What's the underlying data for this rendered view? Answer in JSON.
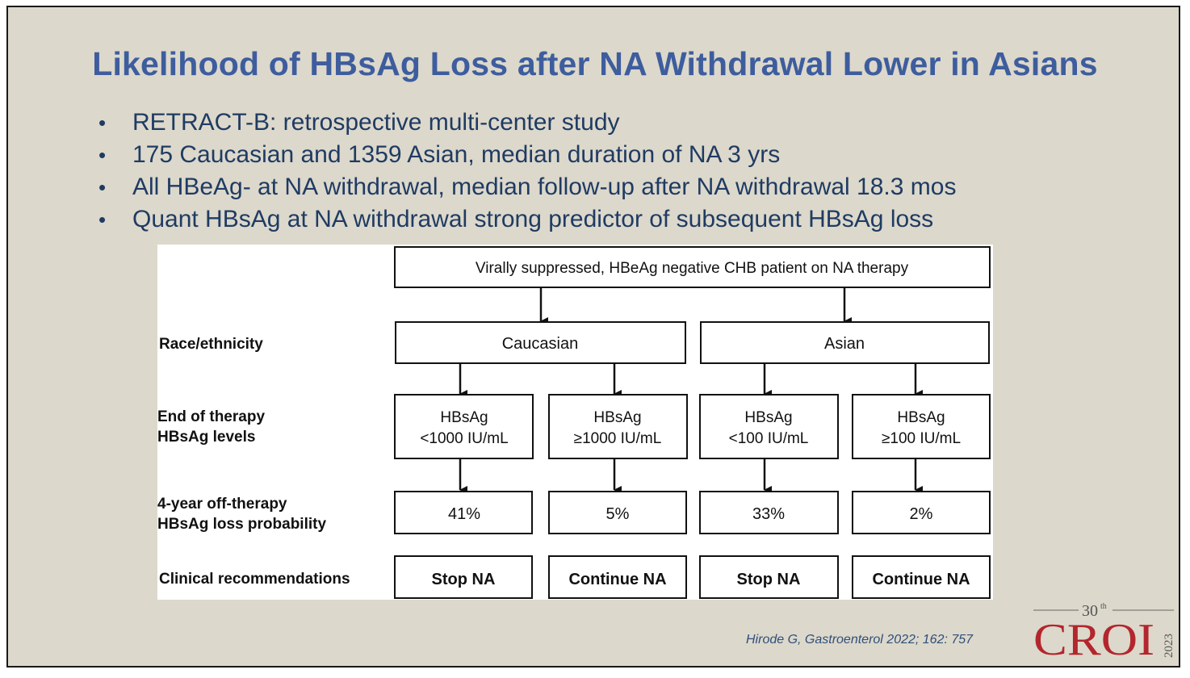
{
  "slide": {
    "title": "Likelihood of HBsAg Loss after NA Withdrawal Lower in Asians",
    "bullets": [
      "RETRACT-B: retrospective multi-center study",
      "175 Caucasian and 1359 Asian, median duration of NA 3 yrs",
      "All HBeAg- at NA withdrawal, median follow-up after NA withdrawal 18.3 mos",
      "Quant HBsAg at NA withdrawal strong predictor of subsequent HBsAg loss"
    ],
    "bullet_glyph": "•",
    "citation": "Hirode G, Gastroenterol 2022; 162: 757"
  },
  "diagram": {
    "top_box": "Virally suppressed, HBeAg negative CHB patient on NA therapy",
    "row_labels": {
      "race": "Race/ethnicity",
      "end_therapy_line1": "End of therapy",
      "end_therapy_line2": "HBsAg levels",
      "probability_line1": "4-year off-therapy",
      "probability_line2": "HBsAg loss probability",
      "recommendation": "Clinical recommendations"
    },
    "groups": [
      {
        "name": "Caucasian",
        "branches": [
          {
            "level_line1": "HBsAg",
            "level_line2": "<1000 IU/mL",
            "probability": "41%",
            "recommendation": "Stop NA"
          },
          {
            "level_line1": "HBsAg",
            "level_line2": "≥1000 IU/mL",
            "probability": "5%",
            "recommendation": "Continue NA"
          }
        ]
      },
      {
        "name": "Asian",
        "branches": [
          {
            "level_line1": "HBsAg",
            "level_line2": "<100 IU/mL",
            "probability": "33%",
            "recommendation": "Stop NA"
          },
          {
            "level_line1": "HBsAg",
            "level_line2": "≥100 IU/mL",
            "probability": "2%",
            "recommendation": "Continue NA"
          }
        ]
      }
    ]
  },
  "logo": {
    "number": "30",
    "suffix": "th",
    "name": "CROI",
    "year": "2023"
  },
  "colors": {
    "background": "#dcd8cb",
    "title": "#3e5d9e",
    "bullet_text": "#1f3b63",
    "logo_red": "#b3262d"
  }
}
